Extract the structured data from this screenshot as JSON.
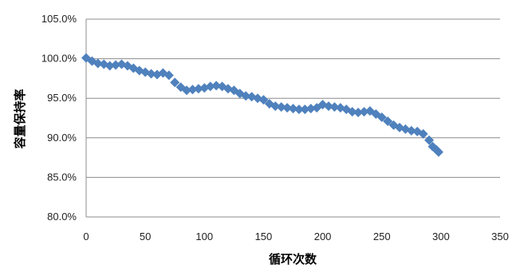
{
  "chart_data": {
    "type": "scatter",
    "xlabel": "循环次数",
    "ylabel": "容量保持率",
    "xlim": [
      0,
      350
    ],
    "ylim": [
      80,
      105
    ],
    "x_ticks": [
      "0",
      "50",
      "100",
      "150",
      "200",
      "250",
      "300",
      "350"
    ],
    "y_ticks": [
      "80.0%",
      "85.0%",
      "90.0%",
      "95.0%",
      "100.0%",
      "105.0%"
    ],
    "grid": "horizontal",
    "legend": "none",
    "marker": "diamond",
    "series_color": "#4F81BD",
    "series": [
      {
        "x": [
          0,
          5,
          10,
          15,
          20,
          25,
          30,
          35,
          40,
          45,
          50,
          55,
          60,
          65,
          70,
          75,
          80,
          85,
          90,
          95,
          100,
          105,
          110,
          115,
          120,
          125,
          130,
          135,
          140,
          145,
          150,
          155,
          160,
          165,
          170,
          175,
          180,
          185,
          190,
          195,
          200,
          205,
          210,
          215,
          220,
          225,
          230,
          235,
          240,
          245,
          250,
          255,
          260,
          265,
          270,
          275,
          280,
          285,
          290,
          293,
          296,
          298
        ],
        "y": [
          100.1,
          99.7,
          99.4,
          99.3,
          99.1,
          99.2,
          99.3,
          99.1,
          98.8,
          98.5,
          98.3,
          98.1,
          98.0,
          98.2,
          97.9,
          97.0,
          96.4,
          96.0,
          96.1,
          96.2,
          96.3,
          96.5,
          96.6,
          96.5,
          96.2,
          96.0,
          95.6,
          95.3,
          95.2,
          95.0,
          94.8,
          94.3,
          94.0,
          93.9,
          93.8,
          93.7,
          93.6,
          93.6,
          93.7,
          93.8,
          94.2,
          94.0,
          93.9,
          93.8,
          93.6,
          93.3,
          93.2,
          93.3,
          93.4,
          93.0,
          92.6,
          92.1,
          91.6,
          91.3,
          91.1,
          90.9,
          90.8,
          90.5,
          89.7,
          88.9,
          88.5,
          88.2
        ]
      }
    ]
  }
}
